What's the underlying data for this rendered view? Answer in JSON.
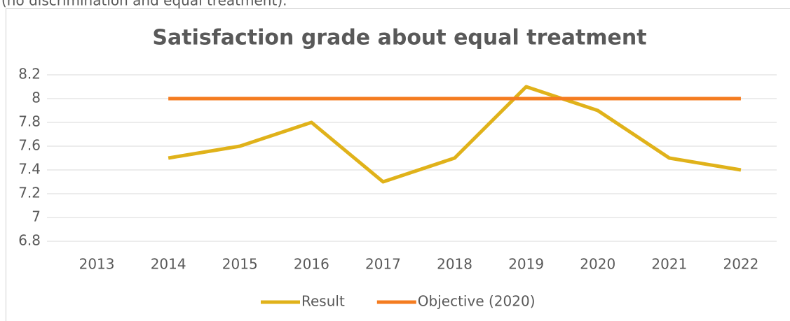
{
  "header_text": "(no discrimination and equal treatment).",
  "chart_data": {
    "type": "line",
    "title": "Satisfaction grade about equal treatment",
    "categories": [
      "2013",
      "2014",
      "2015",
      "2016",
      "2017",
      "2018",
      "2019",
      "2020",
      "2021",
      "2022"
    ],
    "series": [
      {
        "name": "Result",
        "color": "#e0b21a",
        "values": [
          null,
          7.5,
          7.6,
          7.8,
          7.3,
          7.5,
          8.1,
          7.9,
          7.5,
          7.4
        ]
      },
      {
        "name": "Objective (2020)",
        "color": "#f47c20",
        "values": [
          null,
          8,
          8,
          8,
          8,
          8,
          8,
          8,
          8,
          8
        ]
      }
    ],
    "ylim": [
      6.8,
      8.2
    ],
    "yticks": [
      6.8,
      7,
      7.2,
      7.4,
      7.6,
      7.8,
      8,
      8.2
    ],
    "grid": true,
    "legend": "bottom"
  }
}
